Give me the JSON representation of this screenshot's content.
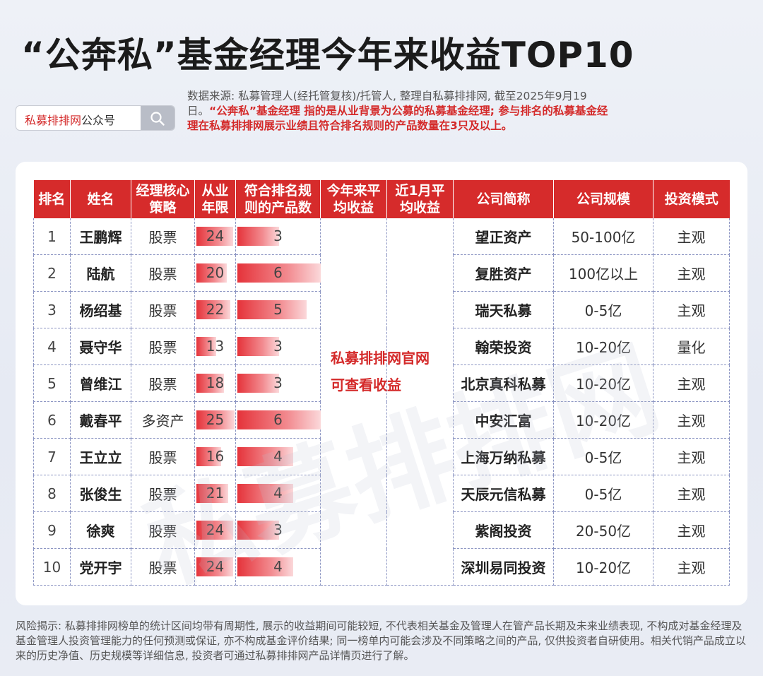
{
  "title": "“公奔私”基金经理今年来收益TOP10",
  "search": {
    "brand": "私募排排网",
    "rest": "公众号"
  },
  "note": {
    "source": "数据来源: 私募管理人(经托管复核)/托管人, 整理自私募排排网, 截至2025年9月19日。",
    "red": "“公奔私”基金经理 指的是从业背景为公募的私募基金经理; 参与排名的私募基金经理在私募排排网展示业绩且符合排名规则的产品数量在3只及以上。"
  },
  "table": {
    "headers": [
      "排名",
      "姓名",
      "经理核心策略",
      "从业年限",
      "符合排名规则的产品数",
      "今年来平均收益",
      "近1月平均收益",
      "公司简称",
      "公司规模",
      "投资模式"
    ],
    "header_lines": [
      [
        "排名"
      ],
      [
        "姓名"
      ],
      [
        "经理核心",
        "策略"
      ],
      [
        "从业",
        "年限"
      ],
      [
        "符合排名规",
        "则的产品数"
      ],
      [
        "今年来平",
        "均收益"
      ],
      [
        "近1月平",
        "均收益"
      ],
      [
        "公司简称"
      ],
      [
        "公司规模"
      ],
      [
        "投资模式"
      ]
    ],
    "rows": [
      {
        "rank": "1",
        "name": "王鹏辉",
        "strategy": "股票",
        "years": 24,
        "products": 3,
        "company": "望正资产",
        "scale": "50-100亿",
        "mode": "主观"
      },
      {
        "rank": "2",
        "name": "陆航",
        "strategy": "股票",
        "years": 20,
        "products": 6,
        "company": "复胜资产",
        "scale": "100亿以上",
        "mode": "主观"
      },
      {
        "rank": "3",
        "name": "杨绍基",
        "strategy": "股票",
        "years": 22,
        "products": 5,
        "company": "瑞天私募",
        "scale": "0-5亿",
        "mode": "主观"
      },
      {
        "rank": "4",
        "name": "聂守华",
        "strategy": "股票",
        "years": 13,
        "products": 3,
        "company": "翰荣投资",
        "scale": "10-20亿",
        "mode": "量化"
      },
      {
        "rank": "5",
        "name": "曾维江",
        "strategy": "股票",
        "years": 18,
        "products": 3,
        "company": "北京真科私募",
        "scale": "10-20亿",
        "mode": "主观"
      },
      {
        "rank": "6",
        "name": "戴春平",
        "strategy": "多资产",
        "years": 25,
        "products": 6,
        "company": "中安汇富",
        "scale": "10-20亿",
        "mode": "主观"
      },
      {
        "rank": "7",
        "name": "王立立",
        "strategy": "股票",
        "years": 16,
        "products": 4,
        "company": "上海万纳私募",
        "scale": "0-5亿",
        "mode": "主观"
      },
      {
        "rank": "8",
        "name": "张俊生",
        "strategy": "股票",
        "years": 21,
        "products": 4,
        "company": "天辰元信私募",
        "scale": "0-5亿",
        "mode": "主观"
      },
      {
        "rank": "9",
        "name": "徐爽",
        "strategy": "股票",
        "years": 24,
        "products": 3,
        "company": "紫阁投资",
        "scale": "20-50亿",
        "mode": "主观"
      },
      {
        "rank": "10",
        "name": "党开宇",
        "strategy": "股票",
        "years": 24,
        "products": 4,
        "company": "深圳易同投资",
        "scale": "10-20亿",
        "mode": "主观"
      }
    ]
  },
  "overlay": [
    "私募排排网官网",
    "可查看收益"
  ],
  "watermark": "私募排排网",
  "footer": "风险揭示: 私募排排网榜单的统计区间均带有周期性, 展示的收益期间可能较短, 不代表相关基金及管理人在管产品长期及未来业绩表现, 不构成对基金经理及基金管理人投资管理能力的任何预测或保证, 亦不构成基金评价结果; 同一榜单内可能会涉及不同策略之间的产品, 仅供投资者自研使用。相关代销产品成立以来的历史净值、历史规模等详细信息, 投资者可通过私募排排网产品详情页进行了解。",
  "colors": {
    "accent": "#d62b2b",
    "bar": "#e5333a"
  }
}
